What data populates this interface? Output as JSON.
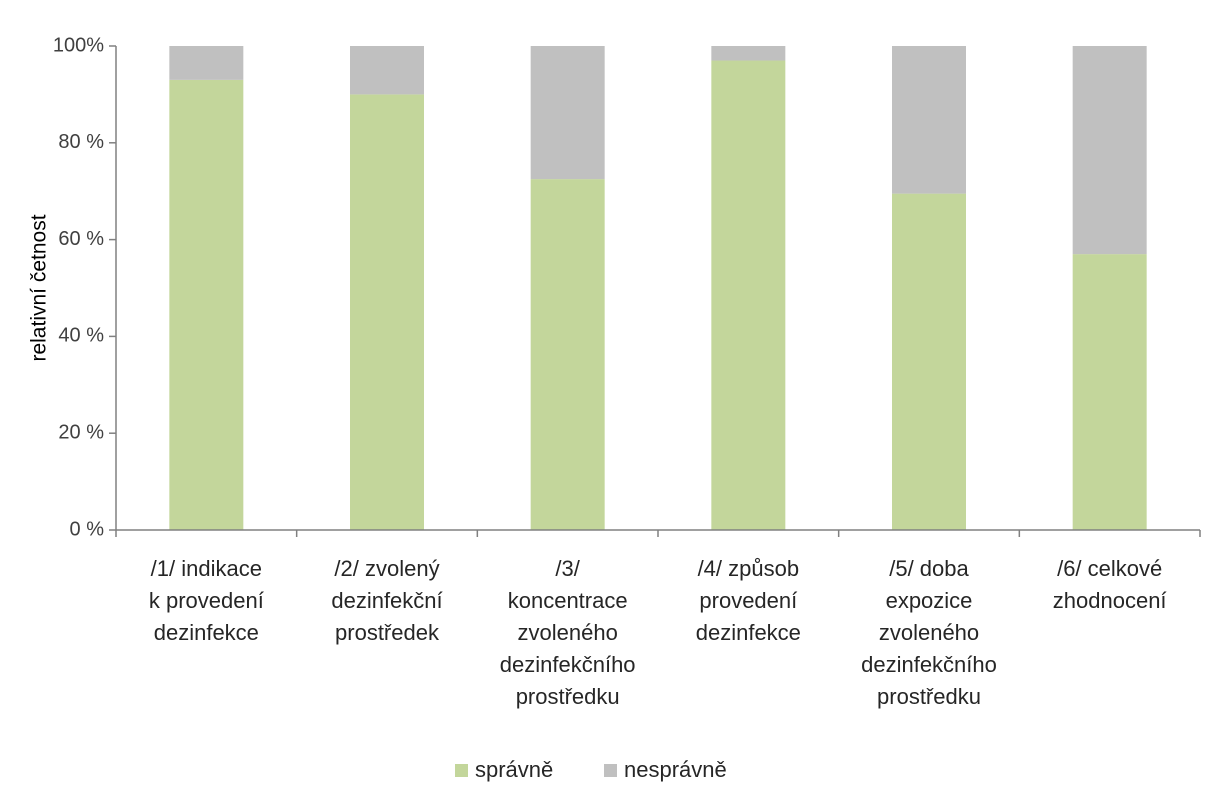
{
  "chart_data": {
    "type": "bar",
    "stacked": true,
    "categories": [
      [
        "/1/ indikace",
        "k provedení",
        "dezinfekce"
      ],
      [
        "/2/ zvolený",
        "dezinfekční",
        "prostředek"
      ],
      [
        "/3/",
        "koncentrace",
        "zvoleného",
        "dezinfekčního",
        "prostředku"
      ],
      [
        "/4/ způsob",
        "provedení",
        "dezinfekce"
      ],
      [
        "/5/ doba",
        "expozice",
        "zvoleného",
        "dezinfekčního",
        "prostředku"
      ],
      [
        "/6/ celkové",
        "zhodnocení"
      ]
    ],
    "series": [
      {
        "name": "správně",
        "color": "#c3d69b",
        "values": [
          93,
          90,
          72.5,
          97,
          69.5,
          57
        ]
      },
      {
        "name": "nesprávně",
        "color": "#c0c0c0",
        "values": [
          7,
          10,
          27.5,
          3,
          30.5,
          43
        ]
      }
    ],
    "ylabel": "relativní četnost",
    "ylim": [
      0,
      100
    ],
    "yticks": [
      "0 %",
      "20 %",
      "40 %",
      "60 %",
      "80 %",
      "100%"
    ],
    "grid": false,
    "legend_position": "bottom"
  }
}
